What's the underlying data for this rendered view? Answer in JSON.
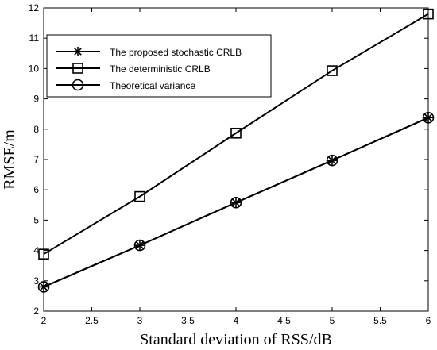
{
  "chart_data": {
    "type": "line",
    "title": "",
    "xlabel": "Standard deviation of RSS/dB",
    "ylabel": "RMSE/m",
    "xlim": [
      2,
      6
    ],
    "ylim": [
      2,
      12
    ],
    "xticks": [
      2,
      2.5,
      3,
      3.5,
      4,
      4.5,
      5,
      5.5,
      6
    ],
    "xtick_labels": [
      "2",
      "2.5",
      "3",
      "3.5",
      "4",
      "4.5",
      "5",
      "5.5",
      "6"
    ],
    "yticks": [
      2,
      3,
      4,
      5,
      6,
      7,
      8,
      9,
      10,
      11,
      12
    ],
    "ytick_labels": [
      "2",
      "3",
      "4",
      "5",
      "6",
      "7",
      "8",
      "9",
      "10",
      "11",
      "12"
    ],
    "grid": false,
    "legend_position": "top-left",
    "x": [
      2,
      3,
      4,
      5,
      6
    ],
    "series": [
      {
        "name": "The proposed stochastic CRLB",
        "marker": "asterisk",
        "values": [
          2.8,
          4.17,
          5.58,
          6.97,
          8.38
        ]
      },
      {
        "name": "The deterministic CRLB",
        "marker": "square",
        "values": [
          3.88,
          5.78,
          7.87,
          9.93,
          11.8
        ]
      },
      {
        "name": "Theoretical variance",
        "marker": "circle",
        "values": [
          2.8,
          4.17,
          5.58,
          6.97,
          8.38
        ]
      }
    ]
  }
}
